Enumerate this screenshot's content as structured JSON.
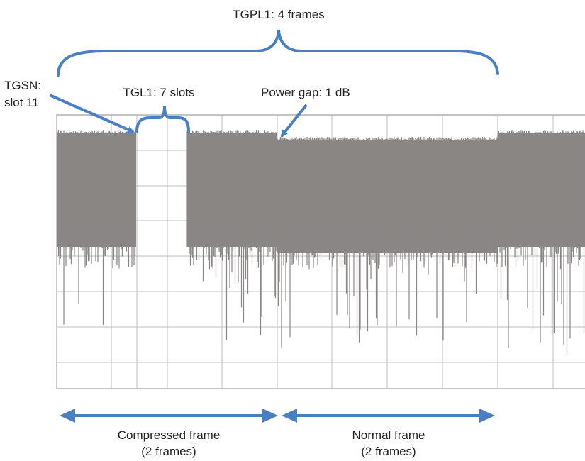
{
  "labels": {
    "tgpl": "TGPL1: 4 frames",
    "tgsn_line1": "TGSN:",
    "tgsn_line2": "slot 11",
    "tgl": "TGL1: 7 slots",
    "power_gap": "Power gap: 1 dB",
    "compressed_line1": "Compressed frame",
    "compressed_line2": "(2 frames)",
    "normal_line1": "Normal frame",
    "normal_line2": "(2 frames)"
  },
  "colors": {
    "annotation": "#4a7fc1",
    "signal": "#8a8685",
    "grid": "#bdbdbd",
    "frame": "#b0b0b0",
    "text": "#222222"
  }
}
